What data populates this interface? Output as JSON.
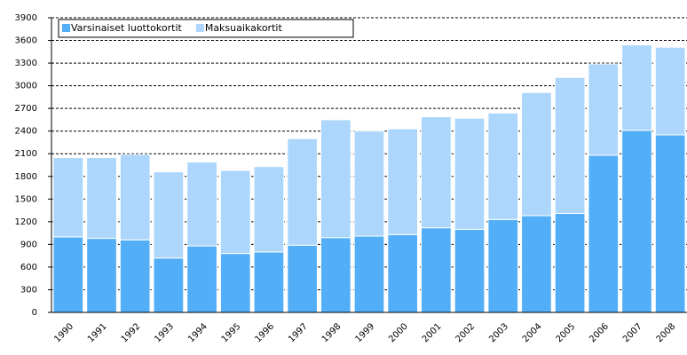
{
  "chart_data": {
    "type": "stacked_bar",
    "categories": [
      "1990",
      "1991",
      "1992",
      "1993",
      "1994",
      "1995",
      "1996",
      "1997",
      "1998",
      "1999",
      "2000",
      "2001",
      "2002",
      "2003",
      "2004",
      "2005",
      "2006",
      "2007",
      "2008"
    ],
    "series": [
      {
        "name": "Varsinaiset luottokortit",
        "color": "#52aef7",
        "values": [
          1000,
          980,
          960,
          720,
          880,
          780,
          800,
          890,
          990,
          1010,
          1030,
          1120,
          1100,
          1230,
          1280,
          1310,
          2080,
          2410,
          2350
        ]
      },
      {
        "name": "Maksuaikakortit",
        "color": "#acd6fb",
        "values": [
          1050,
          1070,
          1130,
          1140,
          1110,
          1100,
          1130,
          1410,
          1560,
          1390,
          1400,
          1470,
          1470,
          1410,
          1630,
          1800,
          1210,
          1130,
          1160
        ]
      }
    ],
    "ylim": [
      0,
      3900
    ],
    "yticks": [
      0,
      300,
      600,
      900,
      1200,
      1500,
      1800,
      2100,
      2400,
      2700,
      3000,
      3300,
      3600,
      3900
    ],
    "grid": true,
    "legend": "top-left"
  }
}
